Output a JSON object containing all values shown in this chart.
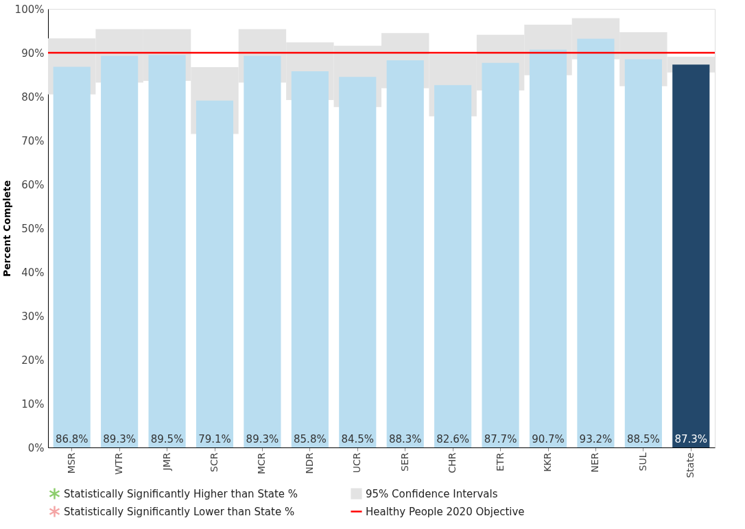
{
  "chart_data": {
    "type": "bar",
    "ylabel": "Percent Complete",
    "categories": [
      "MSR",
      "WTR",
      "JMR",
      "SCR",
      "MCR",
      "NDR",
      "UCR",
      "SER",
      "CHR",
      "ETR",
      "KKR",
      "NER",
      "SUL",
      "State"
    ],
    "series": [
      {
        "name": "95% Confidence Intervals",
        "color": "#e3e3e3",
        "base": [
          80.5,
          83.2,
          83.6,
          71.5,
          83.2,
          79.2,
          77.6,
          81.9,
          75.5,
          81.4,
          84.9,
          88.5,
          82.4,
          85.5
        ],
        "values": [
          12.8,
          12.2,
          11.8,
          15.2,
          12.2,
          13.2,
          14.0,
          12.6,
          14.2,
          12.7,
          11.5,
          9.4,
          12.3,
          3.6
        ]
      },
      {
        "colors": [
          "#b9ddf0",
          "#b9ddf0",
          "#b9ddf0",
          "#b9ddf0",
          "#b9ddf0",
          "#b9ddf0",
          "#b9ddf0",
          "#b9ddf0",
          "#b9ddf0",
          "#b9ddf0",
          "#b9ddf0",
          "#b9ddf0",
          "#b9ddf0",
          "#23486b"
        ],
        "values": [
          86.8,
          89.3,
          89.5,
          79.1,
          89.3,
          85.8,
          84.5,
          88.3,
          82.6,
          87.7,
          90.7,
          93.2,
          88.5,
          87.3
        ],
        "value_labels": [
          "86.8%",
          "89.3%",
          "89.5%",
          "79.1%",
          "89.3%",
          "85.8%",
          "84.5%",
          "88.3%",
          "82.6%",
          "87.7%",
          "90.7%",
          "93.2%",
          "88.5%",
          "87.3%"
        ]
      },
      {
        "type": "scatter",
        "name": "Statistically Significantly Higher than State %",
        "color": "#5cb82e",
        "marker": "cross",
        "values": [
          null,
          null,
          null,
          null,
          null,
          null,
          null,
          null,
          null,
          null,
          null,
          null,
          null,
          null
        ]
      },
      {
        "type": "scatter",
        "name": "Statistically Significantly Lower than State %",
        "color": "#f08080",
        "marker": "cross",
        "values": [
          null,
          null,
          null,
          null,
          null,
          null,
          null,
          null,
          null,
          null,
          null,
          null,
          null,
          null
        ]
      }
    ],
    "ylim": [
      0,
      100
    ],
    "yticks": [
      {
        "value": 0,
        "label": "0%"
      },
      {
        "value": 10,
        "label": "10%"
      },
      {
        "value": 20,
        "label": "20%"
      },
      {
        "value": 30,
        "label": "30%"
      },
      {
        "value": 40,
        "label": "40%"
      },
      {
        "value": 50,
        "label": "50%"
      },
      {
        "value": 60,
        "label": "60%"
      },
      {
        "value": 70,
        "label": "70%"
      },
      {
        "value": 80,
        "label": "80%"
      },
      {
        "value": 90,
        "label": "90%"
      },
      {
        "value": 100,
        "label": "100%"
      }
    ],
    "ref_lines": [
      {
        "axis": "y",
        "value": 90,
        "label": "Healthy People 2020 Objective",
        "color": "#ff0000"
      }
    ],
    "legend": "bottom",
    "grid": false
  }
}
